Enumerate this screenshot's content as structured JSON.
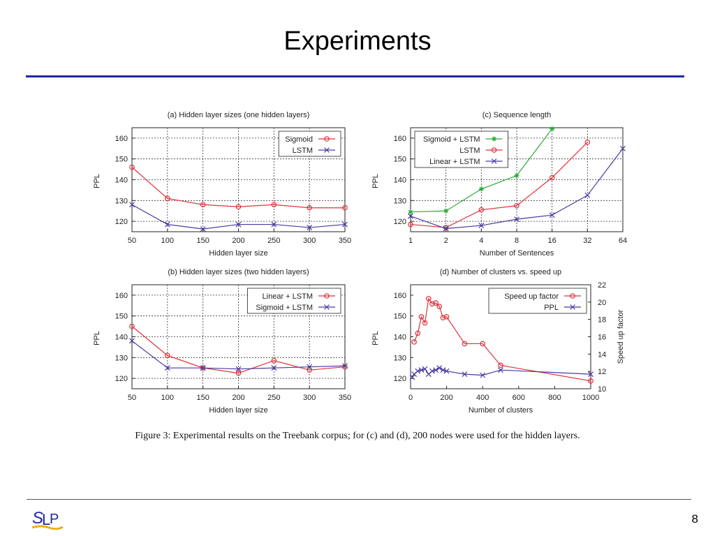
{
  "slide": {
    "title": "Experiments",
    "caption": "Figure 3: Experimental results on the Treebank corpus; for (c) and (d), 200 nodes were used for the hidden layers.",
    "page_number": "8",
    "logo_text": "SLP"
  },
  "chart_data": [
    {
      "id": "a",
      "type": "line",
      "title": "(a) Hidden layer sizes (one hidden layers)",
      "xlabel": "Hidden layer size",
      "ylabel": "PPL",
      "xscale": "linear",
      "xlim": [
        50,
        350
      ],
      "ylim": [
        115,
        165
      ],
      "xticks": [
        50,
        100,
        150,
        200,
        250,
        300,
        350
      ],
      "yticks": [
        120,
        130,
        140,
        150,
        160
      ],
      "grid": true,
      "legend_position": "top-right",
      "series": [
        {
          "name": "Sigmoid",
          "color": "#e0303a",
          "marker": "circle",
          "x": [
            50,
            100,
            150,
            200,
            250,
            300,
            350
          ],
          "y": [
            146,
            131,
            128,
            127,
            128,
            126.5,
            126.5
          ]
        },
        {
          "name": "LSTM",
          "color": "#4a3aa0",
          "marker": "x",
          "x": [
            50,
            100,
            150,
            200,
            250,
            300,
            350
          ],
          "y": [
            128,
            118.5,
            116.3,
            118.5,
            118.5,
            117,
            118.5
          ]
        }
      ]
    },
    {
      "id": "c",
      "type": "line",
      "title": "(c) Sequence length",
      "xlabel": "Number of Sentences",
      "ylabel": "PPL",
      "xscale": "log2",
      "xlim": [
        1,
        64
      ],
      "ylim": [
        115,
        165
      ],
      "xticks": [
        1,
        2,
        4,
        8,
        16,
        32,
        64
      ],
      "yticks": [
        120,
        130,
        140,
        150,
        160
      ],
      "grid": true,
      "legend_position": "top-left",
      "series": [
        {
          "name": "Sigmoid + LSTM",
          "color": "#2aaa3a",
          "marker": "star",
          "x": [
            1,
            2,
            4,
            8,
            16
          ],
          "y": [
            124.5,
            125,
            135.5,
            142,
            164.5
          ]
        },
        {
          "name": "LSTM",
          "color": "#e0303a",
          "marker": "circle",
          "x": [
            1,
            2,
            4,
            8,
            16,
            32
          ],
          "y": [
            118.5,
            117,
            125.5,
            127.5,
            141,
            158
          ]
        },
        {
          "name": "Linear + LSTM",
          "color": "#4a3aa0",
          "marker": "x",
          "x": [
            1,
            2,
            4,
            8,
            16,
            32,
            64
          ],
          "y": [
            122.5,
            116.5,
            118,
            121,
            123,
            132.5,
            155
          ]
        }
      ]
    },
    {
      "id": "b",
      "type": "line",
      "title": "(b) Hidden layer sizes (two hidden layers)",
      "xlabel": "Hidden layer size",
      "ylabel": "PPL",
      "xscale": "linear",
      "xlim": [
        50,
        350
      ],
      "ylim": [
        115,
        165
      ],
      "xticks": [
        50,
        100,
        150,
        200,
        250,
        300,
        350
      ],
      "yticks": [
        120,
        130,
        140,
        150,
        160
      ],
      "grid": true,
      "legend_position": "top-right",
      "series": [
        {
          "name": "Linear + LSTM",
          "color": "#e0303a",
          "marker": "circle",
          "x": [
            50,
            100,
            150,
            200,
            250,
            300,
            350
          ],
          "y": [
            145,
            131,
            125,
            122.5,
            128.5,
            124,
            125.5
          ]
        },
        {
          "name": "Sigmoid + LSTM",
          "color": "#4a3aa0",
          "marker": "x",
          "x": [
            50,
            100,
            150,
            200,
            250,
            300,
            350
          ],
          "y": [
            138,
            125,
            125,
            124.5,
            125,
            125.5,
            126
          ]
        }
      ]
    },
    {
      "id": "d",
      "type": "line",
      "title": "(d) Number of clusters vs. speed up",
      "xlabel": "Number of clusters",
      "ylabel": "PPL",
      "y2label": "Speed up factor",
      "xscale": "linear",
      "xlim": [
        0,
        1000
      ],
      "ylim": [
        115,
        165
      ],
      "y2lim": [
        10,
        22
      ],
      "xticks": [
        0,
        200,
        400,
        600,
        800,
        1000
      ],
      "yticks": [
        120,
        130,
        140,
        150,
        160
      ],
      "y2ticks": [
        10,
        12,
        14,
        16,
        18,
        20,
        22
      ],
      "grid": false,
      "legend_position": "top-right",
      "series": [
        {
          "name": "Speed up factor",
          "color": "#e0303a",
          "marker": "circle",
          "axis": "y2",
          "x": [
            20,
            40,
            60,
            80,
            100,
            120,
            140,
            160,
            180,
            200,
            300,
            400,
            500,
            1000
          ],
          "y": [
            15.4,
            16.4,
            18.3,
            17.6,
            20.4,
            19.8,
            19.9,
            19.5,
            18.2,
            18.3,
            15.2,
            15.2,
            12.7,
            10.9
          ]
        },
        {
          "name": "PPL",
          "color": "#4a3aa0",
          "marker": "x",
          "axis": "y",
          "x": [
            10,
            20,
            40,
            60,
            80,
            100,
            120,
            140,
            160,
            180,
            200,
            300,
            400,
            500,
            1000
          ],
          "y": [
            120.5,
            122,
            123.5,
            124,
            124.5,
            122,
            123.5,
            124,
            125,
            124,
            123.5,
            122,
            121.5,
            124,
            122
          ]
        }
      ]
    }
  ]
}
